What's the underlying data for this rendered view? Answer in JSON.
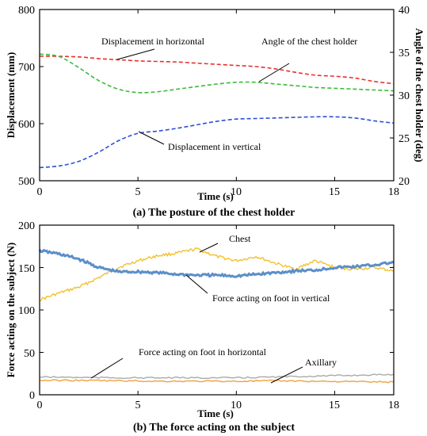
{
  "chart_data": [
    {
      "type": "line",
      "caption": "(a) The posture of the chest holder",
      "xlabel": "Time (s)",
      "ylabel": "Displacement (mm)",
      "y2label": "Angle of the chest holder (deg)",
      "xlim": [
        0,
        18
      ],
      "ylim": [
        500,
        800
      ],
      "y2lim": [
        20,
        40
      ],
      "xticks": [
        "0",
        "5",
        "10",
        "15",
        "18"
      ],
      "yticks": [
        "500",
        "600",
        "700",
        "800"
      ],
      "y2ticks": [
        "20",
        "25",
        "30",
        "35",
        "40"
      ],
      "grid": false,
      "series": [
        {
          "name": "Displacement in horizontal",
          "axis": "left",
          "color": "#e8312f",
          "style": "dashed",
          "x": [
            0,
            1,
            2,
            3,
            4,
            5,
            6,
            7,
            8,
            9,
            10,
            11,
            12,
            13,
            14,
            15,
            16,
            17,
            18
          ],
          "y": [
            718,
            718,
            717,
            714,
            712,
            710,
            709,
            708,
            706,
            704,
            702,
            700,
            696,
            690,
            685,
            683,
            680,
            674,
            670
          ]
        },
        {
          "name": "Displacement in vertical",
          "axis": "left",
          "color": "#2e4fd6",
          "style": "dashed",
          "x": [
            0,
            1,
            2,
            3,
            4,
            5,
            6,
            7,
            8,
            9,
            10,
            11,
            12,
            13,
            14,
            15,
            16,
            17,
            18
          ],
          "y": [
            523,
            526,
            534,
            550,
            570,
            583,
            587,
            592,
            598,
            604,
            608,
            609,
            610,
            611,
            612,
            612,
            610,
            605,
            601
          ]
        },
        {
          "name": "Angle of the chest holder",
          "axis": "right",
          "color": "#3dba3a",
          "style": "dashed",
          "x": [
            0,
            1,
            2,
            3,
            4,
            5,
            6,
            7,
            8,
            9,
            10,
            11,
            12,
            13,
            14,
            15,
            16,
            17,
            18
          ],
          "y": [
            34.8,
            34.5,
            33.2,
            31.7,
            30.7,
            30.3,
            30.4,
            30.7,
            31.0,
            31.3,
            31.5,
            31.5,
            31.3,
            31.1,
            30.9,
            30.8,
            30.7,
            30.6,
            30.5
          ]
        }
      ],
      "annotations": [
        "Displacement in horizontal",
        "Angle of the chest holder",
        "Displacement in vertical"
      ]
    },
    {
      "type": "line",
      "caption": "(b) The force acting on the subject",
      "xlabel": "Time (s)",
      "ylabel": "Force acting on the subject (N)",
      "xlim": [
        0,
        18
      ],
      "ylim": [
        0,
        200
      ],
      "xticks": [
        "0",
        "5",
        "10",
        "15",
        "18"
      ],
      "yticks": [
        "0",
        "50",
        "100",
        "150",
        "200"
      ],
      "grid": false,
      "series": [
        {
          "name": "Chest",
          "color": "#f2c12e",
          "style": "solid",
          "x": [
            0,
            1,
            2,
            3,
            4,
            5,
            6,
            7,
            8,
            9,
            10,
            11,
            12,
            13,
            14,
            15,
            16,
            17,
            18
          ],
          "y": [
            112,
            120,
            127,
            138,
            150,
            158,
            164,
            167,
            172,
            163,
            158,
            163,
            155,
            148,
            158,
            150,
            148,
            150,
            146
          ]
        },
        {
          "name": "Force acting on foot in vertical",
          "color": "#5b8fc9",
          "style": "solid",
          "x": [
            0,
            1,
            2,
            3,
            4,
            5,
            6,
            7,
            8,
            9,
            10,
            11,
            12,
            13,
            14,
            15,
            16,
            17,
            18
          ],
          "y": [
            170,
            166,
            160,
            150,
            145,
            145,
            144,
            142,
            141,
            141,
            140,
            142,
            144,
            146,
            147,
            150,
            151,
            153,
            156
          ]
        },
        {
          "name": "Axillary",
          "color": "#f0a040",
          "style": "solid",
          "x": [
            0,
            2,
            4,
            6,
            8,
            10,
            12,
            14,
            16,
            18
          ],
          "y": [
            17,
            17,
            16.5,
            16,
            16,
            16,
            16.5,
            16,
            15.5,
            15
          ]
        },
        {
          "name": "Force acting on foot in horizontal",
          "color": "#aaaaaa",
          "style": "solid",
          "x": [
            0,
            2,
            4,
            6,
            8,
            10,
            12,
            14,
            16,
            18
          ],
          "y": [
            21,
            20.5,
            20,
            20,
            20,
            20,
            21,
            22,
            23,
            24
          ]
        }
      ],
      "annotations": [
        "Chest",
        "Force acting on foot in vertical",
        "Force acting on foot in horizontal",
        "Axillary"
      ]
    }
  ]
}
